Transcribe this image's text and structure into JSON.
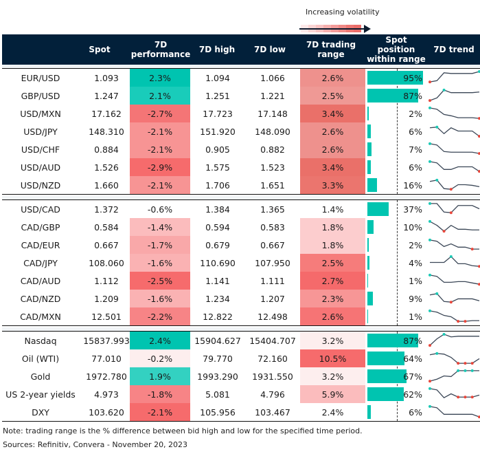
{
  "legend": {
    "label": "Increasing volatility",
    "gradient": [
      "#fde9e9",
      "#fbd6d5",
      "#f9c4c3",
      "#f6b0ae",
      "#f39c9a",
      "#f08a87",
      "#ed7773",
      "#eb6d69"
    ]
  },
  "header": {
    "columns": [
      "",
      "Spot",
      "7D performance",
      "7D high",
      "7D low",
      "7D trading range",
      "Spot position within range",
      "7D trend"
    ]
  },
  "colors": {
    "header_bg": "#02203a",
    "positive_strong": "#00c4b0",
    "bar": "#00c4b0",
    "spark_line": "#3a4656",
    "spark_high": "#1cc9b5",
    "spark_low": "#e8473c"
  },
  "sections": [
    {
      "rows": [
        {
          "name": "EUR/USD",
          "spot": "1.093",
          "perf": "2.3%",
          "high": "1.094",
          "low": "1.066",
          "range": "2.6%",
          "pos": "95%",
          "pos_val": 95,
          "perf_color": "#00c4b0",
          "range_color": "#ee918d",
          "trend": [
            0.15,
            0.25,
            0.85,
            0.8,
            0.8,
            0.8,
            0.8,
            0.95
          ],
          "highs": [
            7
          ],
          "lows": [
            0
          ]
        },
        {
          "name": "GBP/USD",
          "spot": "1.247",
          "perf": "2.1%",
          "high": "1.251",
          "low": "1.221",
          "range": "2.5%",
          "pos": "87%",
          "pos_val": 87,
          "perf_color": "#19ccba",
          "range_color": "#ef9995",
          "trend": [
            0.1,
            0.3,
            0.9,
            0.7,
            0.7,
            0.7,
            0.7,
            0.75
          ],
          "highs": [
            2
          ],
          "lows": [
            0
          ]
        },
        {
          "name": "USD/MXN",
          "spot": "17.162",
          "perf": "-2.7%",
          "high": "17.723",
          "low": "17.148",
          "range": "3.4%",
          "pos": "2%",
          "pos_val": 2,
          "perf_color": "#f47576",
          "range_color": "#ea7069",
          "trend": [
            0.9,
            0.8,
            0.4,
            0.3,
            0.15,
            0.15,
            0.15,
            0.1
          ],
          "highs": [
            0
          ],
          "lows": [
            7
          ]
        },
        {
          "name": "USD/JPY",
          "spot": "148.310",
          "perf": "-2.1%",
          "high": "151.920",
          "low": "148.090",
          "range": "2.6%",
          "pos": "6%",
          "pos_val": 6,
          "perf_color": "#f79494",
          "range_color": "#ee918d",
          "trend": [
            0.75,
            0.8,
            0.3,
            0.75,
            0.5,
            0.5,
            0.5,
            0.1
          ],
          "highs": [
            1
          ],
          "lows": [
            7
          ]
        },
        {
          "name": "USD/CHF",
          "spot": "0.884",
          "perf": "-2.1%",
          "high": "0.905",
          "low": "0.882",
          "range": "2.6%",
          "pos": "7%",
          "pos_val": 7,
          "perf_color": "#f79494",
          "range_color": "#ee918d",
          "trend": [
            0.9,
            0.8,
            0.3,
            0.25,
            0.25,
            0.25,
            0.25,
            0.15
          ],
          "highs": [
            0
          ],
          "lows": [
            7
          ]
        },
        {
          "name": "USD/AUD",
          "spot": "1.526",
          "perf": "-2.9%",
          "high": "1.575",
          "low": "1.523",
          "range": "3.4%",
          "pos": "6%",
          "pos_val": 6,
          "perf_color": "#f66b6c",
          "range_color": "#ea7069",
          "trend": [
            0.9,
            0.8,
            0.3,
            0.3,
            0.5,
            0.5,
            0.5,
            0.15
          ],
          "highs": [
            0
          ],
          "lows": [
            7
          ]
        },
        {
          "name": "USD/NZD",
          "spot": "1.660",
          "perf": "-2.1%",
          "high": "1.706",
          "low": "1.651",
          "range": "3.3%",
          "pos": "16%",
          "pos_val": 16,
          "perf_color": "#f79494",
          "range_color": "#eb756e",
          "trend": [
            0.75,
            0.85,
            0.2,
            0.15,
            0.5,
            0.5,
            0.45,
            0.35
          ],
          "highs": [
            1
          ],
          "lows": [
            3
          ]
        }
      ]
    },
    {
      "rows": [
        {
          "name": "USD/CAD",
          "spot": "1.372",
          "perf": "-0.6%",
          "high": "1.384",
          "low": "1.365",
          "range": "1.4%",
          "pos": "37%",
          "pos_val": 37,
          "perf_color": "#ffffff",
          "range_color": "#ffffff",
          "trend": [
            0.9,
            0.9,
            0.25,
            0.2,
            0.75,
            0.75,
            0.75,
            0.5
          ],
          "highs": [
            0
          ],
          "lows": [
            3
          ]
        },
        {
          "name": "CAD/GBP",
          "spot": "0.584",
          "perf": "-1.4%",
          "high": "0.594",
          "low": "0.583",
          "range": "1.8%",
          "pos": "10%",
          "pos_val": 10,
          "perf_color": "#fbbcbd",
          "range_color": "#fccdce",
          "trend": [
            0.9,
            0.6,
            0.15,
            0.6,
            0.3,
            0.3,
            0.25,
            0.25
          ],
          "highs": [
            0
          ],
          "lows": [
            2
          ]
        },
        {
          "name": "CAD/GBP_",
          "skip": true
        },
        {
          "name": "CAD/EUR",
          "spot": "0.667",
          "perf": "-1.7%",
          "high": "0.679",
          "low": "0.667",
          "range": "1.8%",
          "pos": "2%",
          "pos_val": 2,
          "perf_color": "#f9a8a9",
          "range_color": "#fccdce",
          "trend": [
            0.85,
            0.75,
            0.35,
            0.55,
            0.3,
            0.3,
            0.15,
            0.15
          ],
          "highs": [
            0
          ],
          "lows": [
            6
          ]
        },
        {
          "name": "CAD/JPY",
          "spot": "108.060",
          "perf": "-1.6%",
          "high": "110.690",
          "low": "107.950",
          "range": "2.5%",
          "pos": "4%",
          "pos_val": 4,
          "perf_color": "#fab2b3",
          "range_color": "#f67c7b",
          "trend": [
            0.5,
            0.5,
            0.5,
            0.95,
            0.4,
            0.4,
            0.25,
            0.2
          ],
          "highs": [
            3
          ],
          "lows": [
            7
          ]
        },
        {
          "name": "CAD/AUD",
          "spot": "1.112",
          "perf": "-2.5%",
          "high": "1.141",
          "low": "1.111",
          "range": "2.7%",
          "pos": "1%",
          "pos_val": 1,
          "perf_color": "#f66b6c",
          "range_color": "#f56a6b",
          "trend": [
            0.9,
            0.8,
            0.35,
            0.35,
            0.4,
            0.4,
            0.3,
            0.2
          ],
          "highs": [
            0
          ],
          "lows": [
            7
          ]
        },
        {
          "name": "CAD/NZD",
          "spot": "1.209",
          "perf": "-1.6%",
          "high": "1.234",
          "low": "1.207",
          "range": "2.3%",
          "pos": "9%",
          "pos_val": 9,
          "perf_color": "#fab2b3",
          "range_color": "#f79696",
          "trend": [
            0.75,
            0.85,
            0.25,
            0.2,
            0.45,
            0.45,
            0.45,
            0.3
          ],
          "highs": [
            1
          ],
          "lows": [
            3
          ]
        },
        {
          "name": "CAD/MXN",
          "spot": "12.501",
          "perf": "-2.2%",
          "high": "12.822",
          "low": "12.498",
          "range": "2.6%",
          "pos": "1%",
          "pos_val": 1,
          "perf_color": "#f78486",
          "range_color": "#f67475",
          "trend": [
            0.9,
            0.8,
            0.55,
            0.45,
            0.1,
            0.1,
            0.15,
            0.15
          ],
          "highs": [
            0
          ],
          "lows": [
            4,
            5
          ]
        }
      ]
    },
    {
      "rows": [
        {
          "name": "Nasdaq",
          "spot": "15837.993",
          "perf": "2.4%",
          "high": "15904.627",
          "low": "15404.707",
          "range": "3.2%",
          "pos": "87%",
          "pos_val": 87,
          "perf_color": "#00c4b0",
          "range_color": "#fdeeee",
          "trend": [
            0.1,
            0.6,
            0.95,
            0.75,
            0.8,
            0.8,
            0.8,
            0.8
          ],
          "highs": [
            2
          ],
          "lows": [
            0
          ]
        },
        {
          "name": "Oil (WTI)",
          "spot": "77.010",
          "perf": "-0.2%",
          "high": "79.770",
          "low": "72.160",
          "range": "10.5%",
          "pos": "64%",
          "pos_val": 64,
          "perf_color": "#fdeeee",
          "range_color": "#f66b6c",
          "trend": [
            0.75,
            0.85,
            0.8,
            0.55,
            0.1,
            0.1,
            0.1,
            0.45
          ],
          "highs": [
            1
          ],
          "lows": [
            4,
            5,
            6
          ]
        },
        {
          "name": "Gold",
          "spot": "1972.780",
          "perf": "1.9%",
          "high": "1993.290",
          "low": "1931.550",
          "range": "3.2%",
          "pos": "67%",
          "pos_val": 67,
          "perf_color": "#33d1c1",
          "range_color": "#fdeeee",
          "trend": [
            0.1,
            0.25,
            0.5,
            0.45,
            0.9,
            0.9,
            0.9,
            0.9
          ],
          "highs": [
            4,
            5,
            6
          ],
          "lows": [
            0
          ]
        },
        {
          "name": "US 2-year yields",
          "spot": "4.973",
          "perf": "-1.8%",
          "high": "5.081",
          "low": "4.796",
          "range": "5.9%",
          "pos": "62%",
          "pos_val": 62,
          "perf_color": "#f78486",
          "range_color": "#fbbcbd",
          "trend": [
            0.9,
            0.8,
            0.2,
            0.5,
            0.25,
            0.25,
            0.25,
            0.4
          ],
          "highs": [
            0
          ],
          "lows": [
            4,
            5,
            6
          ]
        },
        {
          "name": "DXY",
          "spot": "103.620",
          "perf": "-2.1%",
          "high": "105.956",
          "low": "103.467",
          "range": "2.4%",
          "pos": "6%",
          "pos_val": 6,
          "perf_color": "#f66b6c",
          "range_color": "#ffffff",
          "trend": [
            0.9,
            0.8,
            0.3,
            0.3,
            0.3,
            0.3,
            0.3,
            0.1
          ],
          "highs": [
            0
          ],
          "lows": [
            7
          ]
        }
      ]
    }
  ],
  "footer": {
    "note": "Note: trading range is the % difference between bid high and low for the specified time period.",
    "source": "Sources: Refinitiv, Convera - November 20, 2023"
  }
}
